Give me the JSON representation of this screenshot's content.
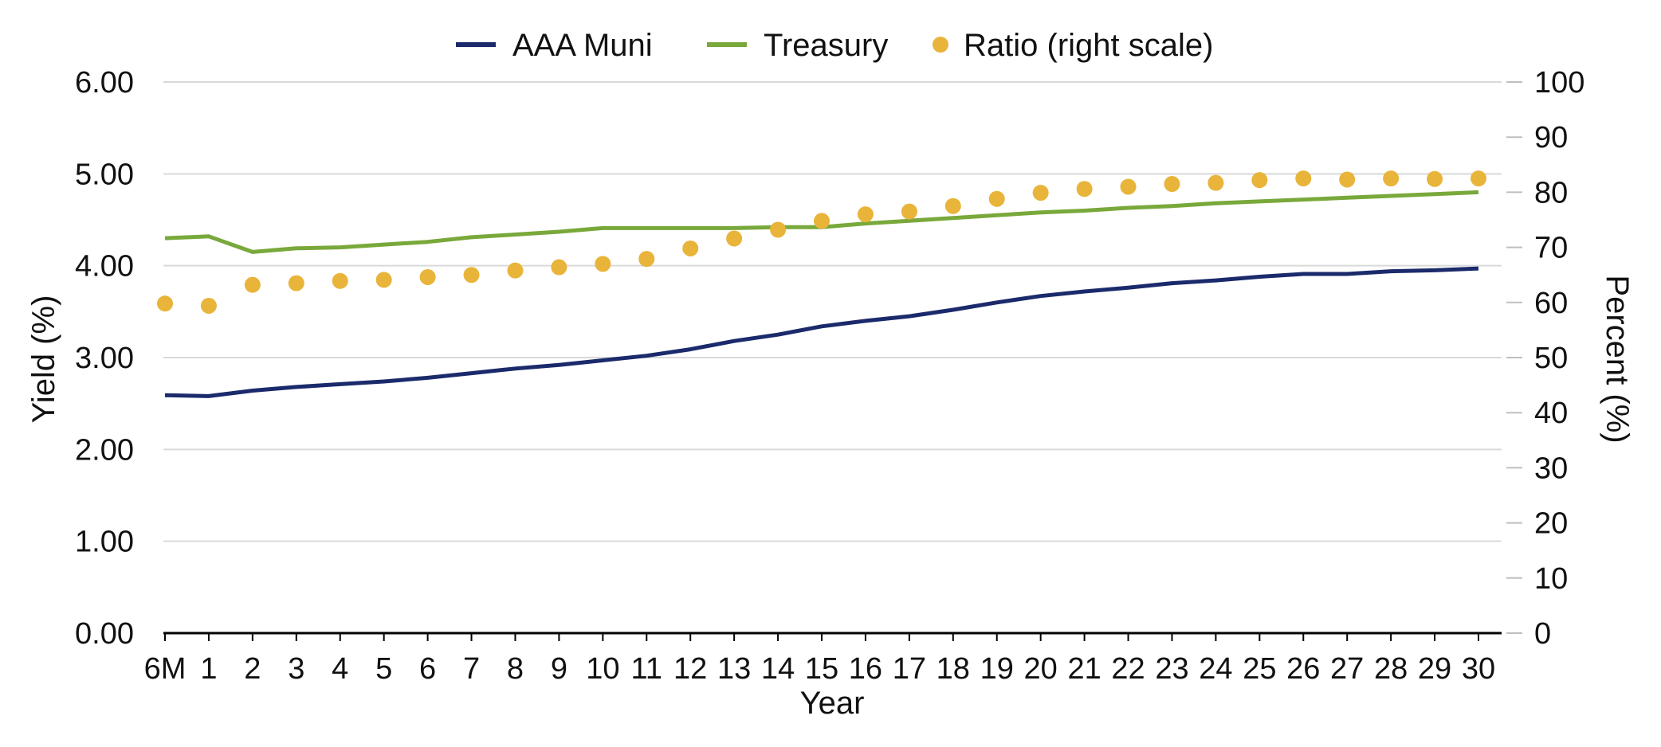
{
  "chart_data": {
    "type": "line",
    "title": "",
    "xlabel": "Year",
    "ylabel": "Yield (%)",
    "y2label": "Percent (%)",
    "categories": [
      "6M",
      "1",
      "2",
      "3",
      "4",
      "5",
      "6",
      "7",
      "8",
      "9",
      "10",
      "11",
      "12",
      "13",
      "14",
      "15",
      "16",
      "17",
      "18",
      "19",
      "20",
      "21",
      "22",
      "23",
      "24",
      "25",
      "26",
      "27",
      "28",
      "29",
      "30"
    ],
    "ylim": [
      0,
      6
    ],
    "yticks": [
      "0.00",
      "1.00",
      "2.00",
      "3.00",
      "4.00",
      "5.00",
      "6.00"
    ],
    "y2lim": [
      0,
      100
    ],
    "y2ticks": [
      "0",
      "10",
      "20",
      "30",
      "40",
      "50",
      "60",
      "70",
      "80",
      "90",
      "100"
    ],
    "grid": true,
    "legend_position": "top-center",
    "series": [
      {
        "name": "AAA Muni",
        "kind": "line",
        "axis": "left",
        "color": "#1b2a6b",
        "values": [
          2.59,
          2.58,
          2.64,
          2.68,
          2.71,
          2.74,
          2.78,
          2.83,
          2.88,
          2.92,
          2.97,
          3.02,
          3.09,
          3.18,
          3.25,
          3.34,
          3.4,
          3.45,
          3.52,
          3.6,
          3.67,
          3.72,
          3.76,
          3.81,
          3.84,
          3.88,
          3.91,
          3.91,
          3.94,
          3.95,
          3.97
        ]
      },
      {
        "name": "Treasury",
        "kind": "line",
        "axis": "left",
        "color": "#79a83b",
        "values": [
          4.3,
          4.32,
          4.15,
          4.19,
          4.2,
          4.23,
          4.26,
          4.31,
          4.34,
          4.37,
          4.41,
          4.41,
          4.41,
          4.41,
          4.42,
          4.42,
          4.46,
          4.49,
          4.52,
          4.55,
          4.58,
          4.6,
          4.63,
          4.65,
          4.68,
          4.7,
          4.72,
          4.74,
          4.76,
          4.78,
          4.8
        ]
      },
      {
        "name": "Ratio (right scale)",
        "kind": "scatter",
        "axis": "right",
        "color": "#e8b43a",
        "values": [
          59.8,
          59.4,
          63.2,
          63.5,
          63.9,
          64.1,
          64.6,
          65.0,
          65.8,
          66.4,
          67.0,
          67.9,
          69.8,
          71.6,
          73.2,
          74.8,
          76.0,
          76.5,
          77.5,
          78.8,
          79.9,
          80.6,
          81.0,
          81.5,
          81.7,
          82.2,
          82.5,
          82.3,
          82.5,
          82.4,
          82.5
        ]
      }
    ]
  }
}
